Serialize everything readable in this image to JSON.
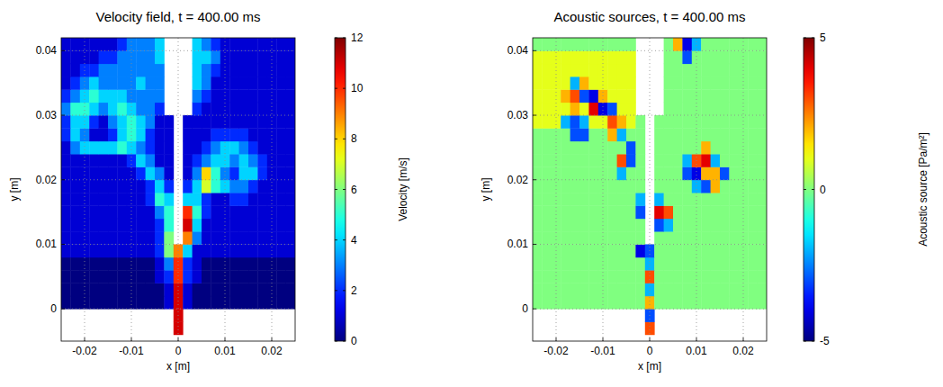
{
  "chart_data": [
    {
      "type": "heatmap",
      "title": "Velocity field, t = 400.00 ms",
      "xlabel": "x [m]",
      "ylabel": "y [m]",
      "xlim": [
        -0.025,
        0.025
      ],
      "ylim": [
        -0.005,
        0.042
      ],
      "xticks": [
        -0.02,
        -0.01,
        0,
        0.01,
        0.02
      ],
      "yticks": [
        0,
        0.01,
        0.02,
        0.03,
        0.04
      ],
      "grid": true,
      "color": "jet",
      "x": [
        -0.024,
        -0.022,
        -0.02,
        -0.018,
        -0.016,
        -0.014,
        -0.012,
        -0.01,
        -0.008,
        -0.006,
        -0.004,
        -0.002,
        0,
        0.002,
        0.004,
        0.006,
        0.008,
        0.01,
        0.012,
        0.014,
        0.016,
        0.018,
        0.02,
        0.022,
        0.024
      ],
      "y": [
        -0.003,
        -0.001,
        0.001,
        0.003,
        0.005,
        0.007,
        0.009,
        0.011,
        0.013,
        0.015,
        0.017,
        0.019,
        0.021,
        0.023,
        0.025,
        0.027,
        0.029,
        0.031,
        0.033,
        0.035,
        0.037,
        0.039,
        0.041
      ],
      "cells": [
        [
          null,
          null,
          null,
          null,
          null,
          null,
          null,
          null,
          null,
          null,
          null,
          null,
          11,
          null,
          null,
          null,
          null,
          null,
          null,
          null,
          null,
          null,
          null,
          null,
          null
        ],
        [
          null,
          null,
          null,
          null,
          null,
          null,
          null,
          null,
          null,
          null,
          null,
          null,
          11,
          null,
          null,
          null,
          null,
          null,
          null,
          null,
          null,
          null,
          null,
          null,
          null
        ],
        [
          0,
          0,
          0,
          0,
          0,
          0,
          0,
          0,
          0,
          0,
          0,
          1,
          11,
          1,
          0,
          0,
          0,
          0,
          0,
          0,
          0,
          0,
          0,
          0,
          0
        ],
        [
          0,
          0,
          0,
          0,
          0,
          0,
          0,
          0,
          0,
          0,
          0,
          1,
          11,
          1,
          0,
          0,
          0,
          0,
          0,
          0,
          0,
          0,
          0,
          0,
          0
        ],
        [
          0,
          0,
          0,
          0,
          0,
          0,
          0,
          0,
          0,
          0,
          1,
          2,
          10,
          2,
          1,
          0,
          0,
          0,
          0,
          0,
          0,
          0,
          0,
          0,
          0
        ],
        [
          0,
          0,
          0,
          0,
          0,
          0,
          0,
          0,
          0,
          0,
          1,
          3,
          10,
          2,
          1,
          0,
          0,
          0,
          0,
          0,
          0,
          0,
          0,
          0,
          0
        ],
        [
          1,
          1,
          1,
          1,
          1,
          1,
          1,
          1,
          1,
          1,
          2,
          6,
          9,
          4,
          1,
          1,
          1,
          1,
          1,
          1,
          1,
          1,
          1,
          1,
          1
        ],
        [
          1,
          1,
          1,
          1,
          1,
          1,
          1,
          1,
          1,
          1,
          2,
          6,
          null,
          9,
          3,
          1,
          1,
          1,
          1,
          1,
          1,
          1,
          1,
          1,
          1
        ],
        [
          1,
          1,
          1,
          1,
          1,
          1,
          1,
          1,
          1,
          1,
          2,
          5,
          null,
          11,
          4,
          1,
          1,
          1,
          1,
          1,
          1,
          1,
          1,
          1,
          1
        ],
        [
          1,
          1,
          1,
          1,
          1,
          1,
          1,
          1,
          1,
          1,
          3,
          5,
          null,
          10,
          5,
          2,
          1,
          1,
          1,
          1,
          1,
          1,
          1,
          1,
          1
        ],
        [
          1,
          1,
          1,
          1,
          1,
          1,
          1,
          1,
          1,
          2,
          5,
          4,
          null,
          4,
          4,
          2,
          1,
          1,
          2,
          2,
          1,
          1,
          1,
          1,
          1
        ],
        [
          1,
          1,
          1,
          1,
          1,
          1,
          1,
          1,
          1,
          2,
          4,
          2,
          null,
          2,
          4,
          7,
          5,
          4,
          3,
          3,
          2,
          1,
          1,
          1,
          1
        ],
        [
          1,
          1,
          1,
          1,
          1,
          1,
          1,
          1,
          2,
          4,
          3,
          1,
          null,
          1,
          3,
          8,
          5,
          3,
          2,
          4,
          4,
          2,
          1,
          1,
          1
        ],
        [
          1,
          1,
          1,
          1,
          1,
          1,
          1,
          2,
          4,
          3,
          1,
          1,
          null,
          1,
          2,
          3,
          4,
          4,
          3,
          4,
          3,
          2,
          1,
          1,
          1
        ],
        [
          1,
          3,
          4,
          4,
          4,
          4,
          5,
          4,
          3,
          2,
          1,
          1,
          null,
          1,
          1,
          2,
          3,
          4,
          4,
          3,
          2,
          1,
          1,
          1,
          1
        ],
        [
          2,
          4,
          3,
          1,
          1,
          2,
          4,
          5,
          4,
          2,
          1,
          1,
          null,
          1,
          1,
          1,
          2,
          2,
          2,
          2,
          1,
          1,
          1,
          1,
          1
        ],
        [
          2,
          4,
          4,
          2,
          1,
          3,
          4,
          5,
          4,
          3,
          1,
          1,
          null,
          1,
          1,
          1,
          1,
          1,
          1,
          1,
          1,
          1,
          1,
          1,
          1
        ],
        [
          3,
          5,
          5,
          4,
          3,
          4,
          5,
          4,
          3,
          3,
          2,
          null,
          null,
          null,
          2,
          1,
          1,
          1,
          1,
          1,
          1,
          1,
          1,
          1,
          1
        ],
        [
          2,
          3,
          4,
          5,
          4,
          4,
          4,
          3,
          3,
          3,
          3,
          null,
          null,
          null,
          3,
          2,
          1,
          1,
          1,
          1,
          1,
          1,
          1,
          1,
          1
        ],
        [
          1,
          2,
          3,
          4,
          3,
          3,
          3,
          3,
          4,
          3,
          3,
          null,
          null,
          null,
          4,
          3,
          1,
          1,
          1,
          1,
          1,
          1,
          1,
          1,
          1
        ],
        [
          1,
          1,
          2,
          2,
          3,
          3,
          3,
          3,
          3,
          3,
          3,
          null,
          null,
          null,
          4,
          3,
          2,
          1,
          1,
          1,
          1,
          1,
          1,
          1,
          1
        ],
        [
          1,
          1,
          1,
          1,
          2,
          2,
          3,
          3,
          3,
          3,
          4,
          null,
          null,
          null,
          4,
          4,
          3,
          1,
          1,
          1,
          1,
          1,
          1,
          1,
          1
        ],
        [
          1,
          1,
          1,
          1,
          1,
          1,
          2,
          3,
          3,
          3,
          4,
          null,
          null,
          null,
          4,
          3,
          2,
          1,
          1,
          1,
          1,
          1,
          1,
          1,
          1
        ]
      ],
      "colorbar_label": "Velocity [m/s]",
      "colorbar_lim": [
        0,
        12
      ],
      "colorbar_ticks": [
        0,
        2,
        4,
        6,
        8,
        10,
        12
      ]
    },
    {
      "type": "heatmap",
      "title": "Acoustic sources, t = 400.00 ms",
      "xlabel": "x [m]",
      "ylabel": "y [m]",
      "xlim": [
        -0.025,
        0.025
      ],
      "ylim": [
        -0.005,
        0.042
      ],
      "xticks": [
        -0.02,
        -0.01,
        0,
        0.01,
        0.02
      ],
      "yticks": [
        0,
        0.01,
        0.02,
        0.03,
        0.04
      ],
      "grid": true,
      "color": "jet",
      "x": [
        -0.024,
        -0.022,
        -0.02,
        -0.018,
        -0.016,
        -0.014,
        -0.012,
        -0.01,
        -0.008,
        -0.006,
        -0.004,
        -0.002,
        0,
        0.002,
        0.004,
        0.006,
        0.008,
        0.01,
        0.012,
        0.014,
        0.016,
        0.018,
        0.02,
        0.022,
        0.024
      ],
      "y": [
        -0.003,
        -0.001,
        0.001,
        0.003,
        0.005,
        0.007,
        0.009,
        0.011,
        0.013,
        0.015,
        0.017,
        0.019,
        0.021,
        0.023,
        0.025,
        0.027,
        0.029,
        0.031,
        0.033,
        0.035,
        0.037,
        0.039,
        0.041
      ],
      "cells": [
        [
          null,
          null,
          null,
          null,
          null,
          null,
          null,
          null,
          null,
          null,
          null,
          null,
          3,
          null,
          null,
          null,
          null,
          null,
          null,
          null,
          null,
          null,
          null,
          null,
          null
        ],
        [
          null,
          null,
          null,
          null,
          null,
          null,
          null,
          null,
          null,
          null,
          null,
          null,
          -3,
          null,
          null,
          null,
          null,
          null,
          null,
          null,
          null,
          null,
          null,
          null,
          null
        ],
        [
          0,
          0,
          0,
          0,
          0,
          0,
          0,
          0,
          0,
          0,
          0,
          0,
          2,
          0,
          0,
          0,
          0,
          0,
          0,
          0,
          0,
          0,
          0,
          0,
          0
        ],
        [
          0,
          0,
          0,
          0,
          0,
          0,
          0,
          0,
          0,
          0,
          0,
          0,
          -2,
          0,
          0,
          0,
          0,
          0,
          0,
          0,
          0,
          0,
          0,
          0,
          0
        ],
        [
          0,
          0,
          0,
          0,
          0,
          0,
          0,
          0,
          0,
          0,
          0,
          0,
          3,
          0,
          0,
          0,
          0,
          0,
          0,
          0,
          0,
          0,
          0,
          0,
          0
        ],
        [
          0,
          0,
          0,
          0,
          0,
          0,
          0,
          0,
          0,
          0,
          0,
          0,
          -2,
          0,
          0,
          0,
          0,
          0,
          0,
          0,
          0,
          0,
          0,
          0,
          0
        ],
        [
          0,
          0,
          0,
          0,
          0,
          0,
          0,
          0,
          0,
          0,
          0,
          -4,
          -3,
          0,
          0,
          0,
          0,
          0,
          0,
          0,
          0,
          0,
          0,
          0,
          0
        ],
        [
          0,
          0,
          0,
          0,
          0,
          0,
          0,
          0,
          0,
          0,
          0,
          0,
          null,
          0,
          0,
          0,
          0,
          0,
          0,
          0,
          0,
          0,
          0,
          0,
          0
        ],
        [
          0,
          0,
          0,
          0,
          0,
          0,
          0,
          0,
          0,
          0,
          0,
          0,
          null,
          -3,
          -2,
          0,
          0,
          0,
          0,
          0,
          0,
          0,
          0,
          0,
          0
        ],
        [
          0,
          0,
          0,
          0,
          0,
          0,
          0,
          0,
          0,
          0,
          0,
          -3,
          null,
          4,
          3,
          0,
          0,
          0,
          0,
          0,
          0,
          0,
          0,
          0,
          0
        ],
        [
          0,
          0,
          0,
          0,
          0,
          0,
          0,
          0,
          0,
          0,
          0,
          -2,
          null,
          -2,
          0,
          0,
          0,
          0,
          0,
          0,
          0,
          0,
          0,
          0,
          0
        ],
        [
          0,
          0,
          0,
          0,
          0,
          0,
          0,
          0,
          0,
          0,
          0,
          0,
          null,
          0,
          0,
          0,
          0,
          -2,
          -3,
          2,
          0,
          0,
          0,
          0,
          0
        ],
        [
          0,
          0,
          0,
          0,
          0,
          0,
          0,
          0,
          0,
          -2,
          0,
          0,
          null,
          0,
          0,
          0,
          -3,
          -4,
          2,
          2,
          -3,
          0,
          0,
          0,
          0
        ],
        [
          0,
          0,
          0,
          0,
          0,
          0,
          0,
          0,
          0,
          3,
          -3,
          0,
          null,
          0,
          0,
          0,
          -2,
          3,
          4,
          -2,
          0,
          0,
          0,
          0,
          0
        ],
        [
          0,
          0,
          0,
          0,
          0,
          0,
          0,
          0,
          0,
          0,
          -3,
          0,
          null,
          0,
          0,
          0,
          0,
          0,
          2,
          0,
          0,
          0,
          0,
          0,
          0
        ],
        [
          0,
          0,
          0,
          0,
          -3,
          -3,
          0,
          0,
          2,
          -2,
          0,
          0,
          null,
          0,
          0,
          0,
          0,
          0,
          0,
          0,
          0,
          0,
          0,
          0,
          0
        ],
        [
          1,
          1,
          1,
          -2,
          -3,
          -2,
          1,
          1,
          3,
          2,
          1,
          0,
          null,
          0,
          0,
          0,
          0,
          0,
          0,
          0,
          0,
          0,
          0,
          0,
          0
        ],
        [
          1,
          1,
          1,
          1,
          2,
          1,
          4,
          -4,
          -3,
          1,
          1,
          null,
          null,
          null,
          0,
          0,
          0,
          0,
          0,
          0,
          0,
          0,
          0,
          0,
          0
        ],
        [
          1,
          1,
          1,
          2,
          3,
          -3,
          -4,
          2,
          1,
          1,
          1,
          null,
          null,
          null,
          0,
          0,
          0,
          0,
          0,
          0,
          0,
          0,
          0,
          0,
          0
        ],
        [
          1,
          1,
          1,
          1,
          -2,
          2,
          1,
          1,
          1,
          1,
          1,
          null,
          null,
          null,
          0,
          0,
          0,
          0,
          0,
          0,
          0,
          0,
          0,
          0,
          0
        ],
        [
          1,
          1,
          1,
          1,
          1,
          1,
          1,
          1,
          1,
          1,
          1,
          null,
          null,
          null,
          0,
          0,
          0,
          0,
          0,
          0,
          0,
          0,
          0,
          0,
          0
        ],
        [
          1,
          1,
          1,
          1,
          1,
          1,
          1,
          1,
          1,
          1,
          1,
          null,
          null,
          null,
          0,
          0,
          -3,
          0,
          0,
          0,
          0,
          0,
          0,
          0,
          0
        ],
        [
          0,
          0,
          0,
          0,
          0,
          0,
          0,
          0,
          0,
          0,
          0,
          null,
          null,
          null,
          0,
          2,
          -4,
          -2,
          0,
          0,
          0,
          0,
          0,
          0,
          0
        ]
      ],
      "colorbar_label": "Acoustic source [Pa/m²]",
      "colorbar_lim": [
        -5,
        5
      ],
      "colorbar_ticks": [
        -5,
        0,
        5
      ]
    }
  ]
}
